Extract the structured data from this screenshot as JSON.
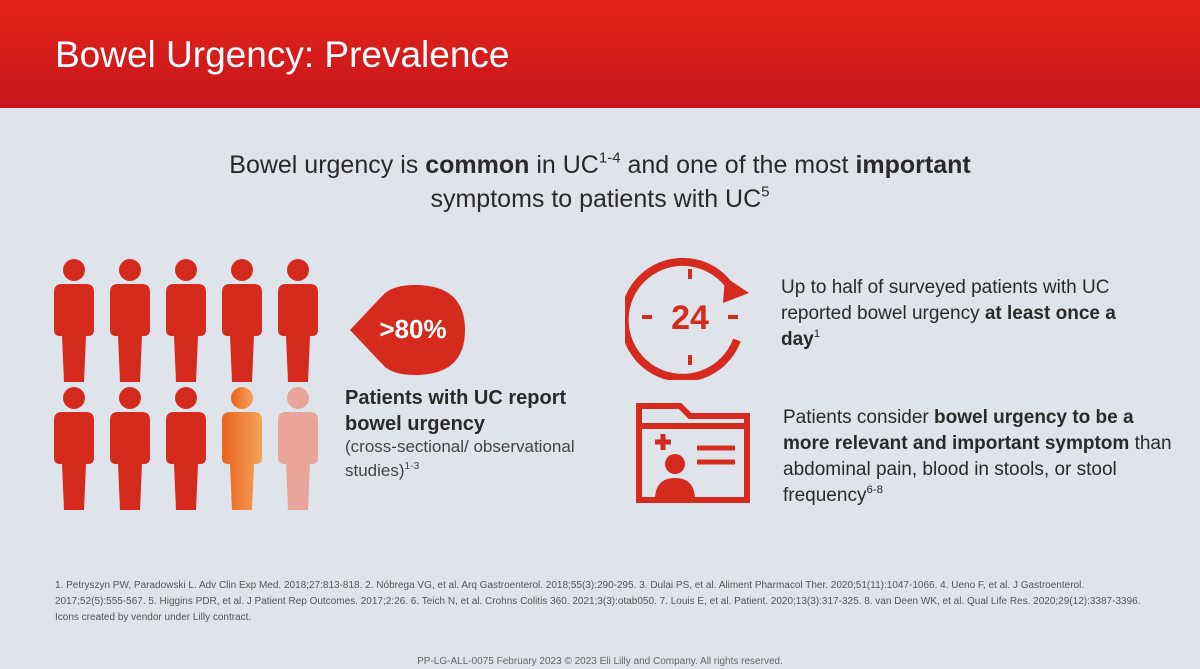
{
  "header": {
    "title": "Bowel Urgency: Prevalence"
  },
  "headline": [
    "Bowel urgency is ",
    "common",
    " in UC",
    "1-4",
    " and one of the most ",
    "important",
    " symptoms to patients with UC",
    "5"
  ],
  "prevalence": {
    "badge": ">80%",
    "heading": "Patients with UC report bowel urgency",
    "note": "(cross-sectional/ observational studies)",
    "note_ref": "1-3"
  },
  "daily": {
    "clock": "24",
    "text": [
      "Up to half of surveyed patients with UC reported bowel urgency ",
      "at least once a day",
      "1"
    ]
  },
  "relevance": {
    "text": [
      "Patients consider ",
      "bowel urgency to be a more relevant and important symptom",
      " than abdominal pain, blood in stools, or stool frequency",
      "6-8"
    ]
  },
  "references": "1. Petryszyn PW, Paradowski L. Adv Clin Exp Med. 2018;27:813-818. 2. Nóbrega VG, et al. Arq Gastroenterol. 2018;55(3):290-295. 3. Dulai PS, et al. Aliment Pharmacol Ther. 2020;51(11):1047-1066. 4. Ueno F, et al. J Gastroenterol. 2017;52(5):555-567. 5. Higgins PDR, et al. J Patient Rep Outcomes. 2017;2:26. 6. Teich N, et al. Crohns Colitis 360. 2021;3(3):otab050. 7. Louis E, et al. Patient. 2020;13(3):317-325. 8. van Deen WK, et al. Qual Life Res. 2020;29(12):3387-3396. Icons created by vendor under Lilly contract.",
  "footer": "PP-LG-ALL-0075 February 2023 © 2023 Eli Lilly and Company. All rights reserved."
}
